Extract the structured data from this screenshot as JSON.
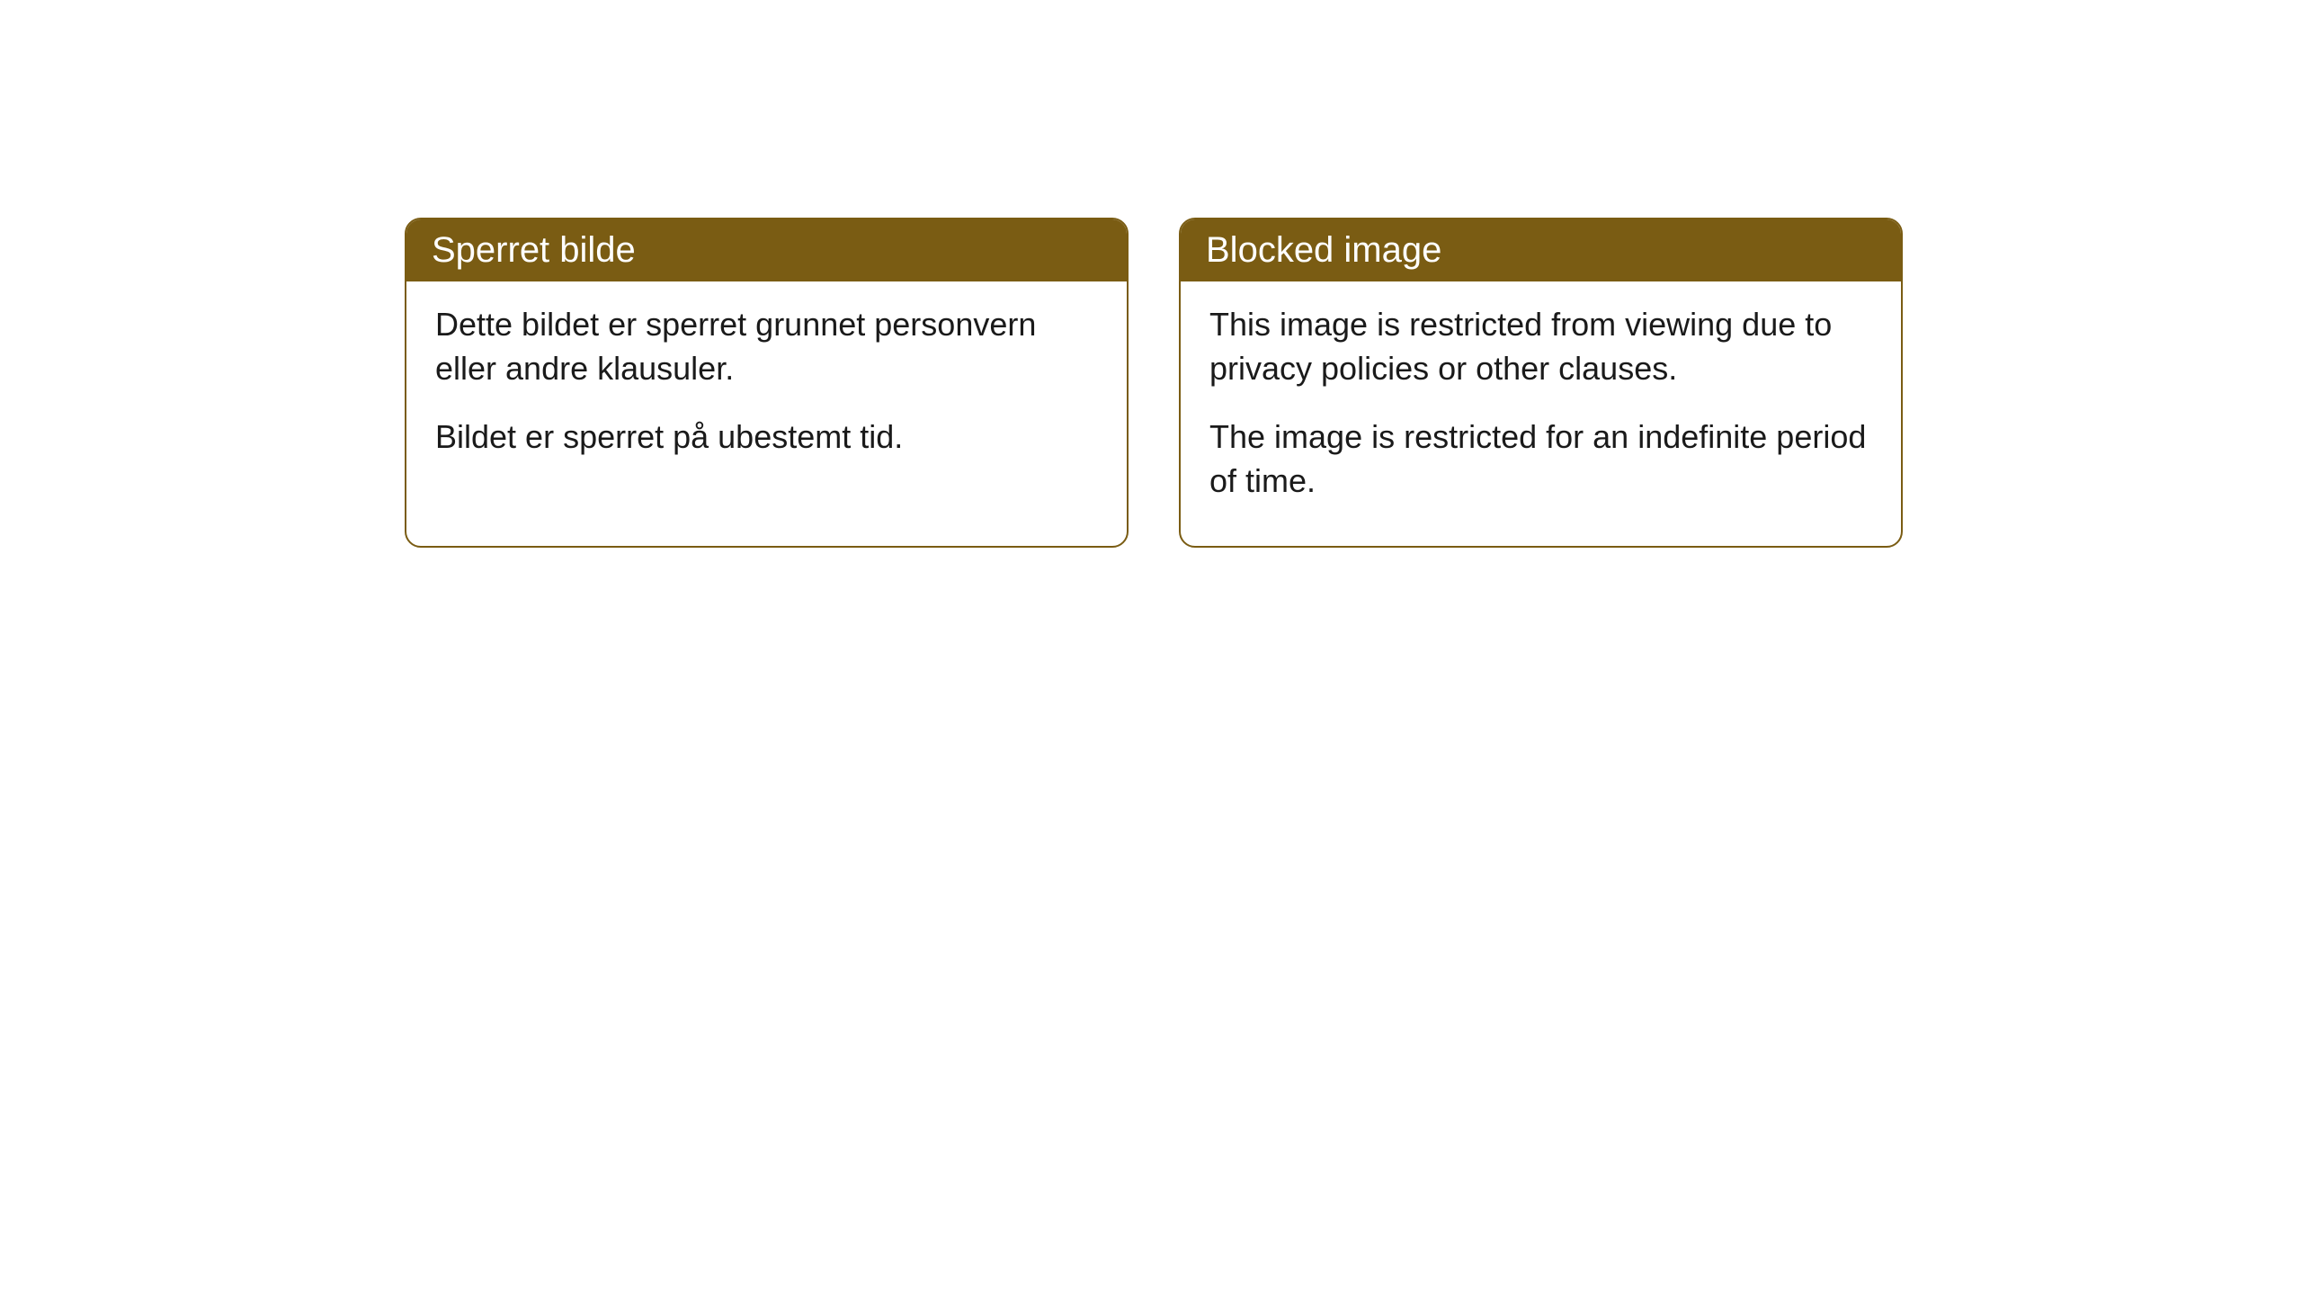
{
  "cards": [
    {
      "header": "Sperret bilde",
      "paragraph1": "Dette bildet er sperret grunnet personvern eller andre klausuler.",
      "paragraph2": "Bildet er sperret på ubestemt tid."
    },
    {
      "header": "Blocked image",
      "paragraph1": "This image is restricted from viewing due to privacy policies or other clauses.",
      "paragraph2": "The image is restricted for an indefinite period of time."
    }
  ],
  "styling": {
    "header_bg_color": "#7a5c13",
    "header_text_color": "#ffffff",
    "border_color": "#7a5c13",
    "body_text_color": "#1a1a1a",
    "card_bg_color": "#ffffff",
    "page_bg_color": "#ffffff",
    "border_radius": 18,
    "header_fontsize": 40,
    "body_fontsize": 36
  }
}
